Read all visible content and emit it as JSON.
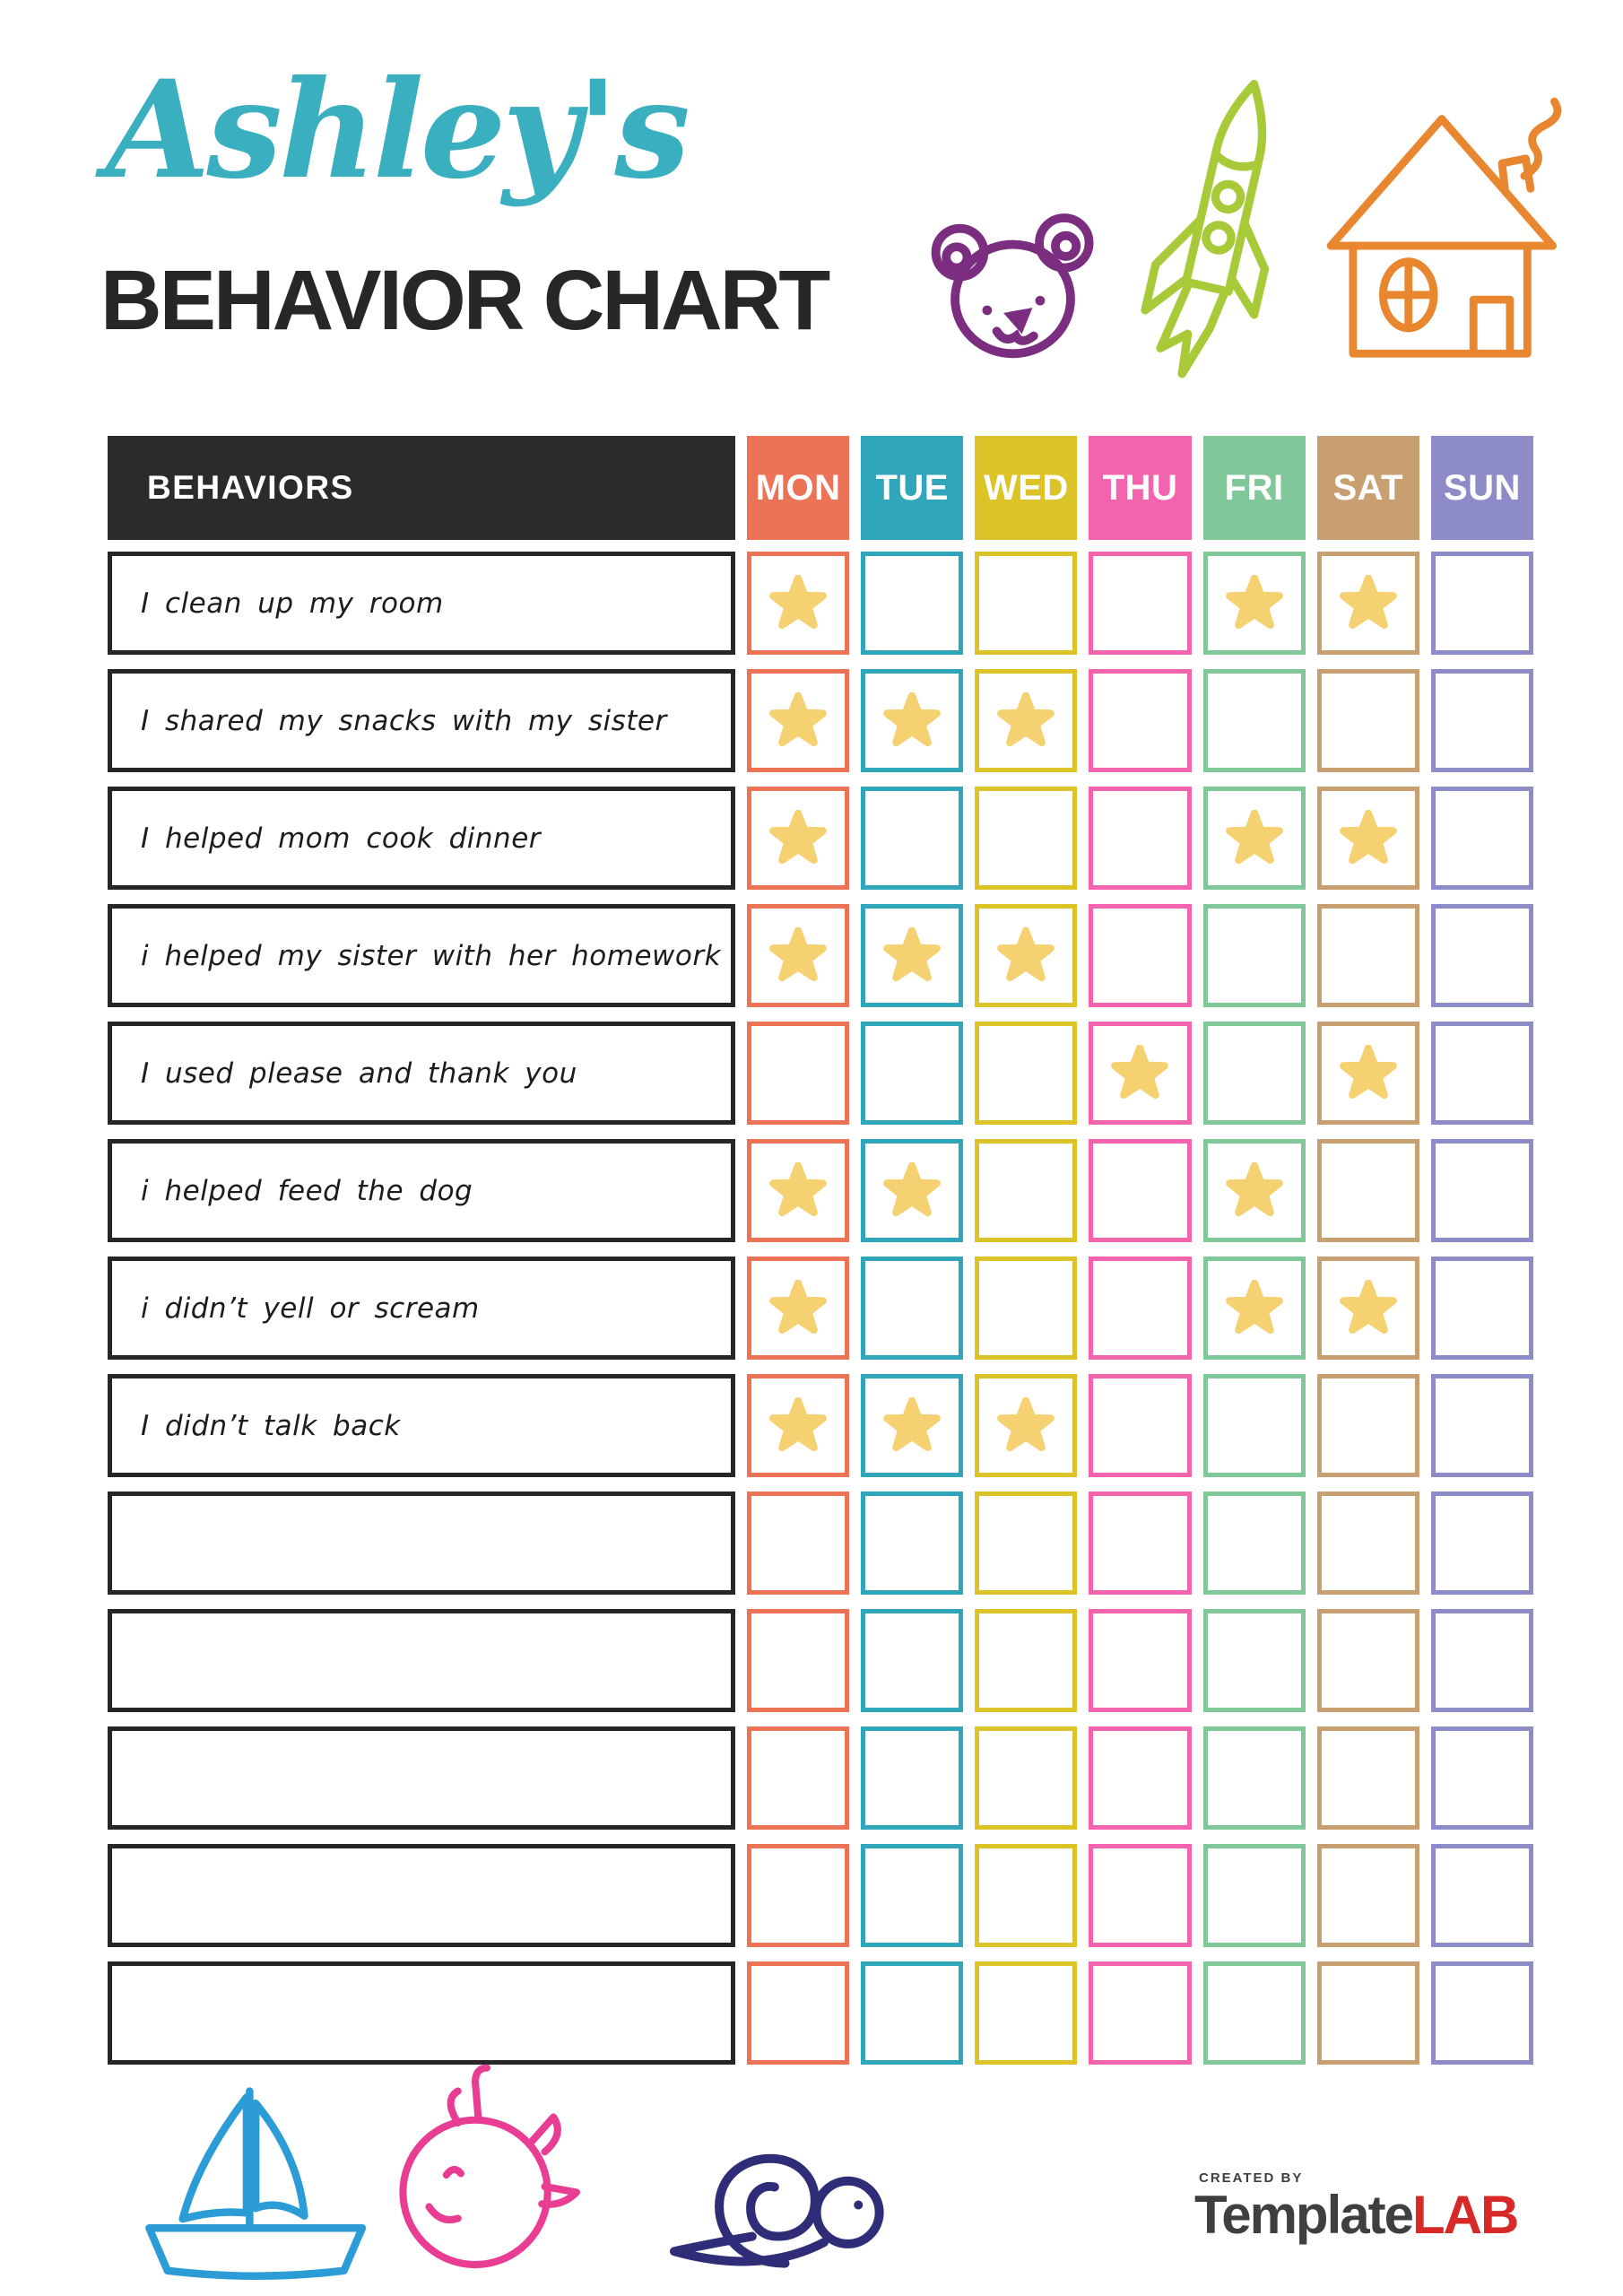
{
  "header": {
    "name_script": "Ashley's",
    "title": "BEHAVIOR CHART"
  },
  "table": {
    "behaviors_header": "BEHAVIORS",
    "days": [
      {
        "label": "MON",
        "color": "#ed7357"
      },
      {
        "label": "TUE",
        "color": "#2fa6b9"
      },
      {
        "label": "WED",
        "color": "#dcc327"
      },
      {
        "label": "THU",
        "color": "#f464ae"
      },
      {
        "label": "FRI",
        "color": "#80c79a"
      },
      {
        "label": "SAT",
        "color": "#c79f70"
      },
      {
        "label": "SUN",
        "color": "#8d8cc8"
      }
    ],
    "star_color": "#f6d172",
    "rows": [
      {
        "label": "I clean up my room",
        "stars": [
          1,
          0,
          0,
          0,
          1,
          1,
          0
        ]
      },
      {
        "label": "I shared my snacks with my sister",
        "stars": [
          1,
          1,
          1,
          0,
          0,
          0,
          0
        ]
      },
      {
        "label": "I helped mom cook dinner",
        "stars": [
          1,
          0,
          0,
          0,
          1,
          1,
          0
        ]
      },
      {
        "label": "i helped my sister with her homework",
        "stars": [
          1,
          1,
          1,
          0,
          0,
          0,
          0
        ]
      },
      {
        "label": "I used please and thank you",
        "stars": [
          0,
          0,
          0,
          1,
          0,
          1,
          0
        ]
      },
      {
        "label": "i helped feed the dog",
        "stars": [
          1,
          1,
          0,
          0,
          1,
          0,
          0
        ]
      },
      {
        "label": "i didn’t yell or scream",
        "stars": [
          1,
          0,
          0,
          0,
          1,
          1,
          0
        ]
      },
      {
        "label": "I didn’t talk back",
        "stars": [
          1,
          1,
          1,
          0,
          0,
          0,
          0
        ]
      },
      {
        "label": "",
        "stars": [
          0,
          0,
          0,
          0,
          0,
          0,
          0
        ]
      },
      {
        "label": "",
        "stars": [
          0,
          0,
          0,
          0,
          0,
          0,
          0
        ]
      },
      {
        "label": "",
        "stars": [
          0,
          0,
          0,
          0,
          0,
          0,
          0
        ]
      },
      {
        "label": "",
        "stars": [
          0,
          0,
          0,
          0,
          0,
          0,
          0
        ]
      },
      {
        "label": "",
        "stars": [
          0,
          0,
          0,
          0,
          0,
          0,
          0
        ]
      }
    ]
  },
  "footer": {
    "logo": {
      "created_by": "CREATED BY",
      "brand_dark": "Template",
      "brand_red": "LAB"
    }
  },
  "colors": {
    "title_script": "#3aafc0",
    "title_dark": "#272727",
    "header_dark": "#2b2b2b",
    "bear": "#7b2e80",
    "rocket": "#a8ca38",
    "house": "#e8872f",
    "boat": "#2b9cd5",
    "whale": "#e83d92",
    "snail": "#2f2c78",
    "logo_dark": "#3f3f3f",
    "logo_red": "#d62928"
  }
}
